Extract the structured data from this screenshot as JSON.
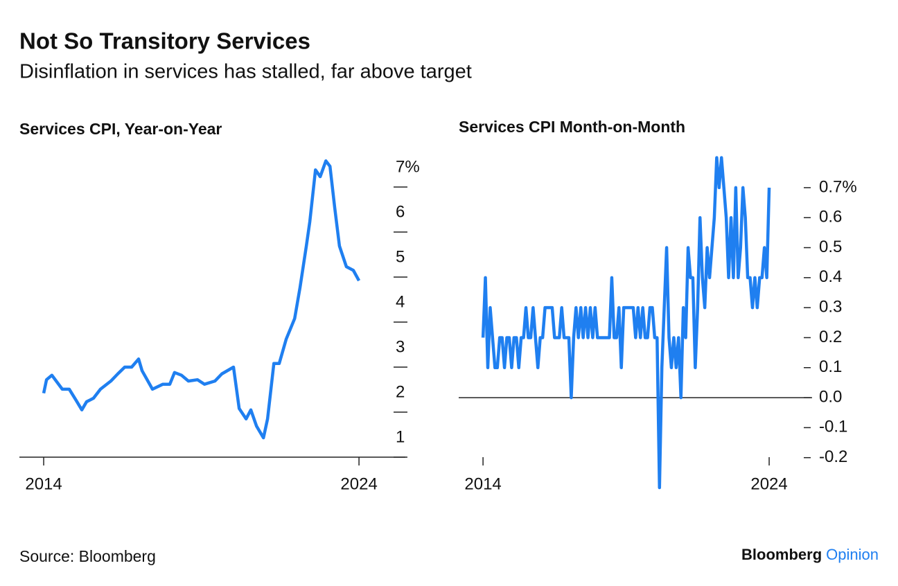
{
  "title": "Not So Transitory Services",
  "subtitle": "Disinflation in services has stalled, far above target",
  "source": "Source: Bloomberg",
  "brand": {
    "name": "Bloomberg",
    "section": "Opinion"
  },
  "chart_data": [
    {
      "type": "line",
      "title": "Services CPI, Year-on-Year",
      "xlim": [
        2013.23,
        2025.47
      ],
      "xticks": [
        2014,
        2024
      ],
      "ylim": [
        1,
        7.7
      ],
      "yticks": [
        1,
        2,
        3,
        4,
        5,
        6,
        {
          "value": 7,
          "label": "7%"
        }
      ],
      "series": [
        {
          "name": "Services CPI YoY",
          "color": "#1f7ff0",
          "x": [
            2014.0,
            2014.09,
            2014.26,
            2014.59,
            2014.81,
            2015.03,
            2015.21,
            2015.36,
            2015.58,
            2015.8,
            2016.13,
            2016.35,
            2016.57,
            2016.79,
            2017.01,
            2017.12,
            2017.45,
            2017.78,
            2018.0,
            2018.15,
            2018.37,
            2018.59,
            2018.88,
            2019.1,
            2019.43,
            2019.65,
            2020.02,
            2020.2,
            2020.42,
            2020.57,
            2020.75,
            2020.97,
            2021.1,
            2021.3,
            2021.47,
            2021.69,
            2021.96,
            2022.13,
            2022.33,
            2022.44,
            2022.62,
            2022.77,
            2022.95,
            2023.08,
            2023.23,
            2023.38,
            2023.6,
            2023.82,
            2024.0
          ],
          "values": [
            2.42,
            2.72,
            2.82,
            2.51,
            2.51,
            2.26,
            2.05,
            2.23,
            2.31,
            2.51,
            2.69,
            2.85,
            3.0,
            3.0,
            3.18,
            2.92,
            2.51,
            2.62,
            2.62,
            2.88,
            2.82,
            2.69,
            2.72,
            2.62,
            2.69,
            2.85,
            3.0,
            2.08,
            1.85,
            2.05,
            1.69,
            1.43,
            1.85,
            3.08,
            3.08,
            3.62,
            4.08,
            4.77,
            5.69,
            6.23,
            7.38,
            7.23,
            7.58,
            7.46,
            6.54,
            5.69,
            5.23,
            5.15,
            4.92
          ]
        }
      ]
    },
    {
      "type": "line",
      "title": "Services CPI Month-on-Month",
      "zero_line": true,
      "xlim": [
        2013.15,
        2025.5
      ],
      "xticks": [
        2014,
        2024
      ],
      "ylim": [
        -0.3,
        0.8
      ],
      "yticks": [
        {
          "value": -0.2,
          "label": "-0.2"
        },
        {
          "value": -0.1,
          "label": "-0.1"
        },
        {
          "value": 0,
          "label": "0.0"
        },
        0.1,
        0.2,
        0.3,
        0.4,
        0.5,
        0.6,
        {
          "value": 0.7,
          "label": "0.7%"
        }
      ],
      "series": [
        {
          "name": "Services CPI MoM",
          "color": "#1f7ff0",
          "x": [
            2014.0,
            2014.083,
            2014.167,
            2014.25,
            2014.333,
            2014.417,
            2014.5,
            2014.583,
            2014.667,
            2014.75,
            2014.833,
            2014.917,
            2015.0,
            2015.083,
            2015.167,
            2015.25,
            2015.333,
            2015.417,
            2015.5,
            2015.583,
            2015.667,
            2015.75,
            2015.833,
            2015.917,
            2016.0,
            2016.083,
            2016.167,
            2016.25,
            2016.333,
            2016.417,
            2016.5,
            2016.583,
            2016.667,
            2016.75,
            2016.833,
            2016.917,
            2017.0,
            2017.083,
            2017.167,
            2017.25,
            2017.333,
            2017.417,
            2017.5,
            2017.583,
            2017.667,
            2017.75,
            2017.833,
            2017.917,
            2018.0,
            2018.083,
            2018.167,
            2018.25,
            2018.333,
            2018.417,
            2018.5,
            2018.583,
            2018.667,
            2018.75,
            2018.833,
            2018.917,
            2019.0,
            2019.083,
            2019.167,
            2019.25,
            2019.333,
            2019.417,
            2019.5,
            2019.583,
            2019.667,
            2019.75,
            2019.833,
            2019.917,
            2020.0,
            2020.083,
            2020.167,
            2020.25,
            2020.333,
            2020.417,
            2020.5,
            2020.583,
            2020.667,
            2020.75,
            2020.833,
            2020.917,
            2021.0,
            2021.083,
            2021.167,
            2021.25,
            2021.333,
            2021.417,
            2021.5,
            2021.583,
            2021.667,
            2021.75,
            2021.833,
            2021.917,
            2022.0,
            2022.083,
            2022.167,
            2022.25,
            2022.333,
            2022.417,
            2022.5,
            2022.583,
            2022.667,
            2022.75,
            2022.833,
            2022.917,
            2023.0,
            2023.083,
            2023.167,
            2023.25,
            2023.333,
            2023.417,
            2023.5,
            2023.583,
            2023.667,
            2023.75,
            2023.833,
            2023.917,
            2024.0
          ],
          "values": [
            0.2,
            0.4,
            0.1,
            0.3,
            0.2,
            0.1,
            0.1,
            0.2,
            0.2,
            0.1,
            0.2,
            0.2,
            0.1,
            0.2,
            0.2,
            0.1,
            0.2,
            0.2,
            0.3,
            0.2,
            0.2,
            0.3,
            0.2,
            0.1,
            0.2,
            0.2,
            0.3,
            0.3,
            0.3,
            0.3,
            0.2,
            0.2,
            0.2,
            0.3,
            0.2,
            0.2,
            0.2,
            0.0,
            0.2,
            0.3,
            0.2,
            0.3,
            0.2,
            0.3,
            0.2,
            0.3,
            0.2,
            0.3,
            0.2,
            0.2,
            0.2,
            0.2,
            0.2,
            0.2,
            0.4,
            0.2,
            0.2,
            0.3,
            0.1,
            0.3,
            0.3,
            0.3,
            0.3,
            0.3,
            0.2,
            0.3,
            0.2,
            0.3,
            0.2,
            0.2,
            0.3,
            0.3,
            0.2,
            0.2,
            -0.3,
            0.1,
            0.3,
            0.5,
            0.2,
            0.1,
            0.2,
            0.1,
            0.2,
            0.0,
            0.3,
            0.2,
            0.5,
            0.4,
            0.4,
            0.1,
            0.3,
            0.6,
            0.4,
            0.3,
            0.5,
            0.4,
            0.5,
            0.6,
            0.8,
            0.7,
            0.8,
            0.7,
            0.6,
            0.4,
            0.6,
            0.4,
            0.7,
            0.4,
            0.5,
            0.7,
            0.6,
            0.4,
            0.4,
            0.3,
            0.4,
            0.3,
            0.4,
            0.4,
            0.5,
            0.4,
            0.7
          ]
        }
      ]
    }
  ]
}
